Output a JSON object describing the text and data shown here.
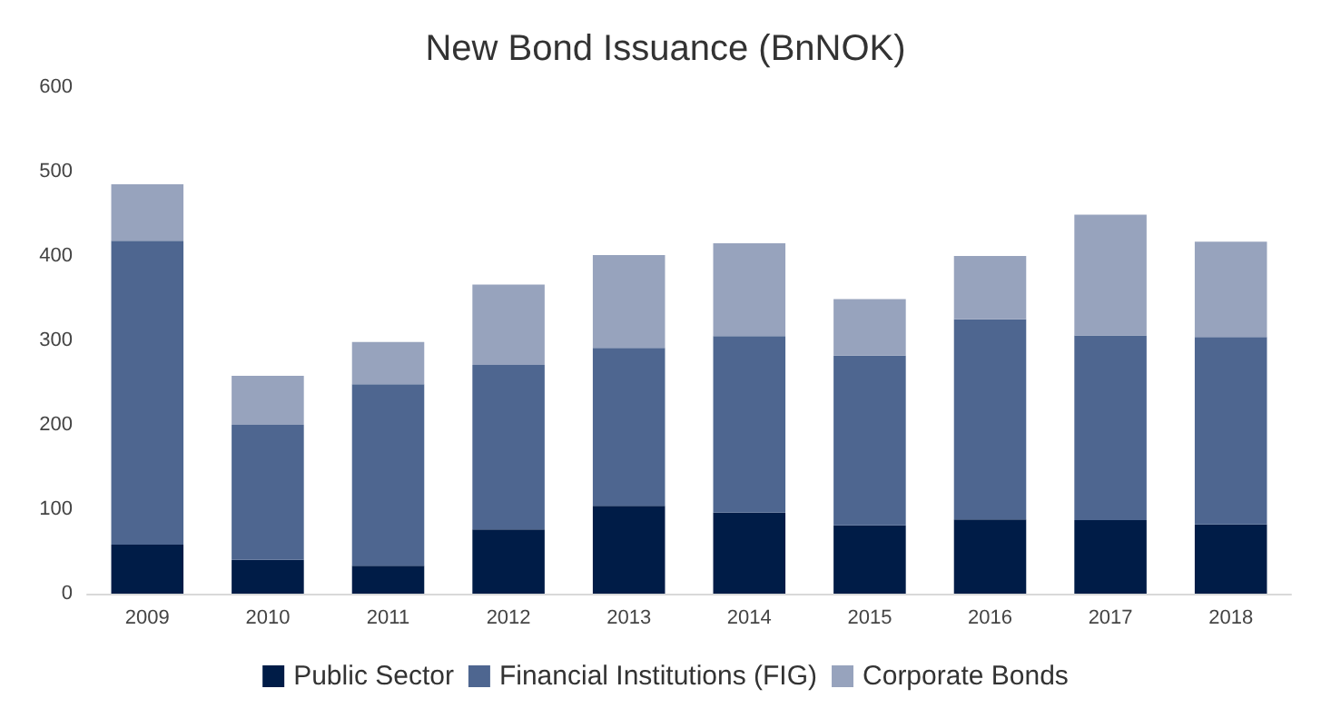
{
  "chart_data": {
    "type": "bar",
    "title": "New Bond Issuance (BnNOK)",
    "stacked": true,
    "categories": [
      "2009",
      "2010",
      "2011",
      "2012",
      "2013",
      "2014",
      "2015",
      "2016",
      "2017",
      "2018"
    ],
    "series": [
      {
        "name": "Public Sector",
        "color": "#001c47",
        "values": [
          58,
          40,
          33,
          76,
          104,
          96,
          81,
          88,
          87,
          82
        ]
      },
      {
        "name": "Financial Institutions (FIG)",
        "color": "#4e6690",
        "values": [
          360,
          160,
          215,
          195,
          187,
          209,
          201,
          237,
          219,
          222
        ]
      },
      {
        "name": "Corporate Bonds",
        "color": "#97a3bd",
        "values": [
          67,
          58,
          50,
          95,
          110,
          110,
          67,
          75,
          143,
          113
        ]
      }
    ],
    "ylim": [
      0,
      600
    ],
    "yticks": [
      0,
      100,
      200,
      300,
      400,
      500,
      600
    ],
    "grid": false,
    "legend": "bottom"
  }
}
